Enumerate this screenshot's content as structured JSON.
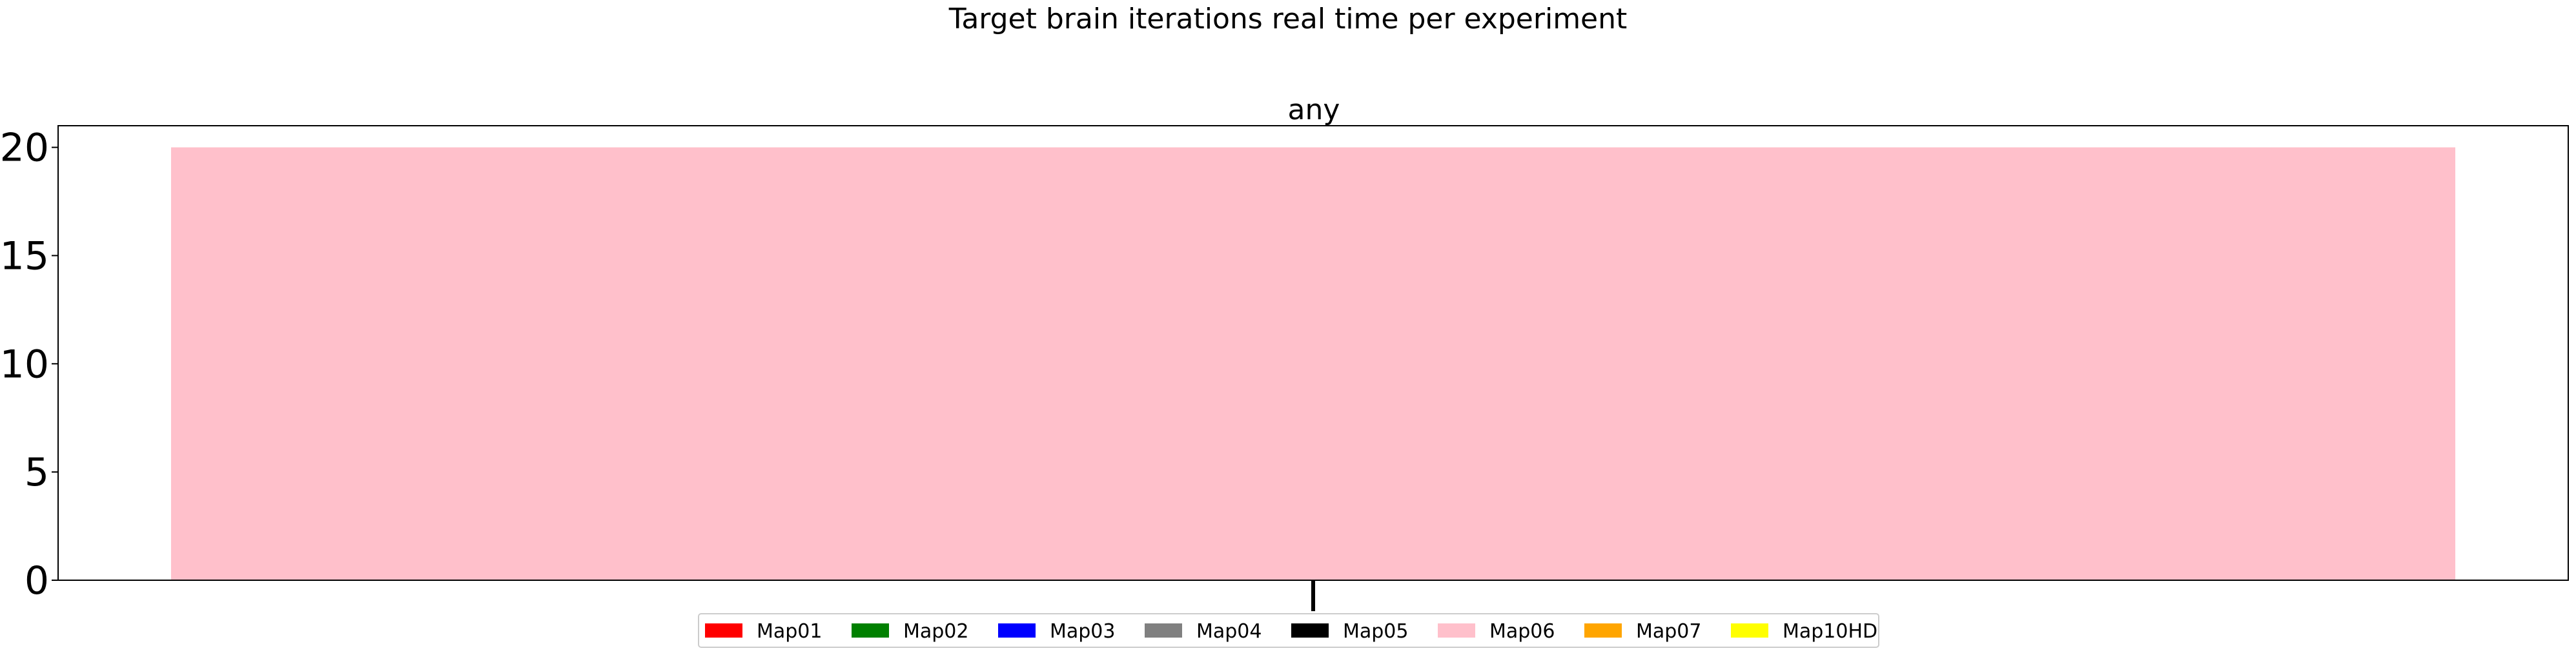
{
  "figure": {
    "title": "Target brain iterations real time per experiment"
  },
  "chart_data": {
    "type": "bar",
    "title": "any",
    "xlabel": "",
    "ylabel": "",
    "categories": [
      ""
    ],
    "series": [
      {
        "name": "Map01",
        "color": "#ff0000",
        "values": [
          0
        ]
      },
      {
        "name": "Map02",
        "color": "#008000",
        "values": [
          0
        ]
      },
      {
        "name": "Map03",
        "color": "#0000ff",
        "values": [
          0
        ]
      },
      {
        "name": "Map04",
        "color": "#808080",
        "values": [
          0
        ]
      },
      {
        "name": "Map05",
        "color": "#000000",
        "values": [
          0
        ]
      },
      {
        "name": "Map06",
        "color": "#ffc0cb",
        "values": [
          20
        ]
      },
      {
        "name": "Map07",
        "color": "#ffa500",
        "values": [
          0
        ]
      },
      {
        "name": "Map10HD",
        "color": "#ffff00",
        "values": [
          0
        ]
      }
    ],
    "ylim": [
      0,
      21
    ],
    "yticks": [
      0,
      5,
      10,
      15,
      20
    ],
    "grid": false,
    "legend_position": "bottom-center"
  }
}
